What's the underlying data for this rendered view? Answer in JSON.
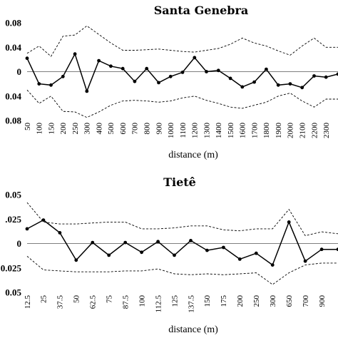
{
  "chart_data": [
    {
      "type": "line",
      "title": "Santa Genebra",
      "xlabel": "distance (m)",
      "ylabel": "",
      "ylim": [
        -0.08,
        0.08
      ],
      "yticks": [
        "0.08",
        "0.04",
        "0",
        "0.04",
        "0.08"
      ],
      "categories": [
        "50",
        "100",
        "150",
        "200",
        "250",
        "300",
        "400",
        "500",
        "600",
        "700",
        "800",
        "900",
        "1000",
        "1100",
        "1200",
        "1300",
        "1400",
        "1500",
        "1600",
        "1700",
        "1800",
        "1900",
        "2000",
        "2100",
        "2200",
        "2300",
        ""
      ],
      "series": [
        {
          "role": "observed",
          "style": "solid-with-markers",
          "values": [
            0.022,
            -0.02,
            -0.022,
            -0.008,
            0.029,
            -0.032,
            0.018,
            0.009,
            0.005,
            -0.016,
            0.005,
            -0.018,
            -0.008,
            -0.001,
            0.023,
            0.0,
            0.002,
            -0.011,
            -0.025,
            -0.017,
            0.004,
            -0.022,
            -0.02,
            -0.026,
            -0.007,
            -0.009,
            -0.004
          ]
        },
        {
          "role": "upper-envelope",
          "style": "dashed",
          "values": [
            0.03,
            0.042,
            0.025,
            0.058,
            0.06,
            0.075,
            0.061,
            0.047,
            0.035,
            0.035,
            0.036,
            0.037,
            0.035,
            0.033,
            0.032,
            0.035,
            0.038,
            0.045,
            0.055,
            0.047,
            0.042,
            0.034,
            0.027,
            0.042,
            0.055,
            0.04,
            0.04
          ]
        },
        {
          "role": "lower-envelope",
          "style": "dashed",
          "values": [
            -0.03,
            -0.052,
            -0.04,
            -0.065,
            -0.066,
            -0.075,
            -0.066,
            -0.055,
            -0.048,
            -0.047,
            -0.048,
            -0.05,
            -0.048,
            -0.043,
            -0.04,
            -0.047,
            -0.052,
            -0.058,
            -0.06,
            -0.055,
            -0.05,
            -0.04,
            -0.035,
            -0.048,
            -0.058,
            -0.045,
            -0.045
          ]
        }
      ]
    },
    {
      "type": "line",
      "title": "Tietê",
      "xlabel": "distance (m)",
      "ylabel": "",
      "ylim": [
        -0.05,
        0.05
      ],
      "yticks": [
        "0.05",
        ".025",
        "0",
        "0.025",
        "0.05"
      ],
      "categories": [
        "12.5",
        "25",
        "37.5",
        "50",
        "62.5",
        "75",
        "87.5",
        "100",
        "112.5",
        "125",
        "137.5",
        "150",
        "175",
        "200",
        "250",
        "300",
        "650",
        "700",
        "900",
        ""
      ],
      "series": [
        {
          "role": "observed",
          "style": "solid-with-markers",
          "values": [
            0.015,
            0.024,
            0.011,
            -0.017,
            0.001,
            -0.012,
            0.001,
            -0.009,
            0.002,
            -0.012,
            0.003,
            -0.007,
            -0.004,
            -0.016,
            -0.01,
            -0.022,
            0.022,
            -0.018,
            -0.006,
            -0.006
          ]
        },
        {
          "role": "upper-envelope",
          "style": "dashed",
          "values": [
            0.042,
            0.022,
            0.02,
            0.02,
            0.021,
            0.022,
            0.022,
            0.015,
            0.015,
            0.016,
            0.018,
            0.018,
            0.014,
            0.013,
            0.015,
            0.015,
            0.035,
            0.008,
            0.012,
            0.01
          ]
        },
        {
          "role": "lower-envelope",
          "style": "dashed",
          "values": [
            -0.013,
            -0.027,
            -0.028,
            -0.029,
            -0.029,
            -0.029,
            -0.028,
            -0.028,
            -0.026,
            -0.031,
            -0.032,
            -0.031,
            -0.032,
            -0.031,
            -0.03,
            -0.042,
            -0.03,
            -0.022,
            -0.02,
            -0.02
          ]
        }
      ]
    }
  ]
}
